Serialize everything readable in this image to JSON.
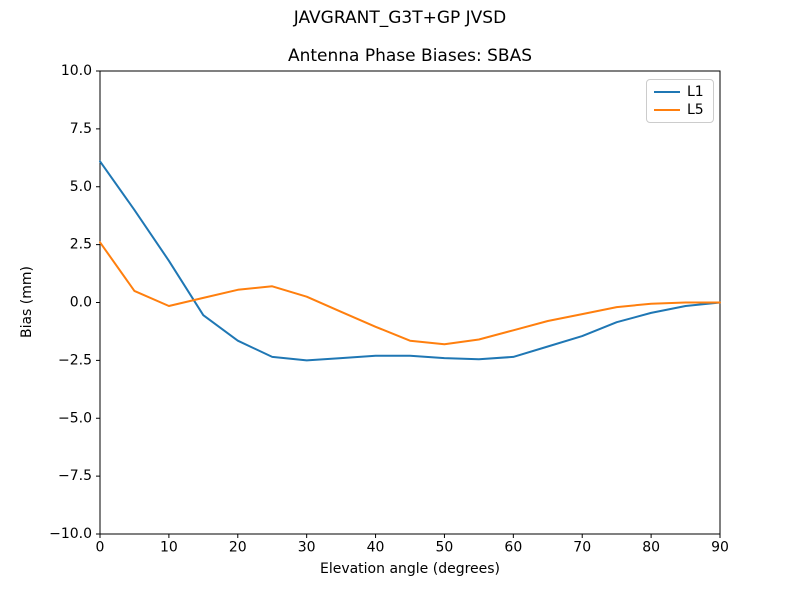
{
  "figure": {
    "suptitle": "JAVGRANT_G3T+GP JVSD"
  },
  "chart_data": {
    "type": "line",
    "title": "Antenna Phase Biases: SBAS",
    "xlabel": "Elevation angle (degrees)",
    "ylabel": "Bias (mm)",
    "xlim": [
      0,
      90
    ],
    "ylim": [
      -10,
      10
    ],
    "grid": false,
    "background": "#ffffff",
    "frame_color": "#000000",
    "legend": {
      "position": "upper right",
      "border_color": "#cccccc",
      "entries": [
        "L1",
        "L5"
      ]
    },
    "x": [
      0,
      5,
      10,
      15,
      20,
      25,
      30,
      35,
      40,
      45,
      50,
      55,
      60,
      65,
      70,
      75,
      80,
      85,
      90
    ],
    "series": [
      {
        "name": "L1",
        "color": "#1f77b4",
        "values": [
          6.1,
          4.0,
          1.8,
          -0.55,
          -1.65,
          -2.35,
          -2.5,
          -2.4,
          -2.3,
          -2.3,
          -2.4,
          -2.45,
          -2.35,
          -1.9,
          -1.45,
          -0.85,
          -0.45,
          -0.15,
          0.0
        ]
      },
      {
        "name": "L5",
        "color": "#ff7f0e",
        "values": [
          2.6,
          0.5,
          -0.15,
          0.2,
          0.55,
          0.7,
          0.25,
          -0.4,
          -1.05,
          -1.65,
          -1.8,
          -1.6,
          -1.2,
          -0.8,
          -0.5,
          -0.2,
          -0.05,
          0.0,
          0.0
        ]
      }
    ],
    "xticks": {
      "values": [
        0,
        10,
        20,
        30,
        40,
        50,
        60,
        70,
        80,
        90
      ],
      "labels": [
        "0",
        "10",
        "20",
        "30",
        "40",
        "50",
        "60",
        "70",
        "80",
        "90"
      ]
    },
    "yticks": {
      "values": [
        10,
        7.5,
        5,
        2.5,
        0,
        -2.5,
        -5,
        -7.5,
        -10
      ],
      "labels": [
        "10.0",
        "7.5",
        "5.0",
        "2.5",
        "0.0",
        "−2.5",
        "−5.0",
        "−7.5",
        "−10.0"
      ]
    }
  }
}
